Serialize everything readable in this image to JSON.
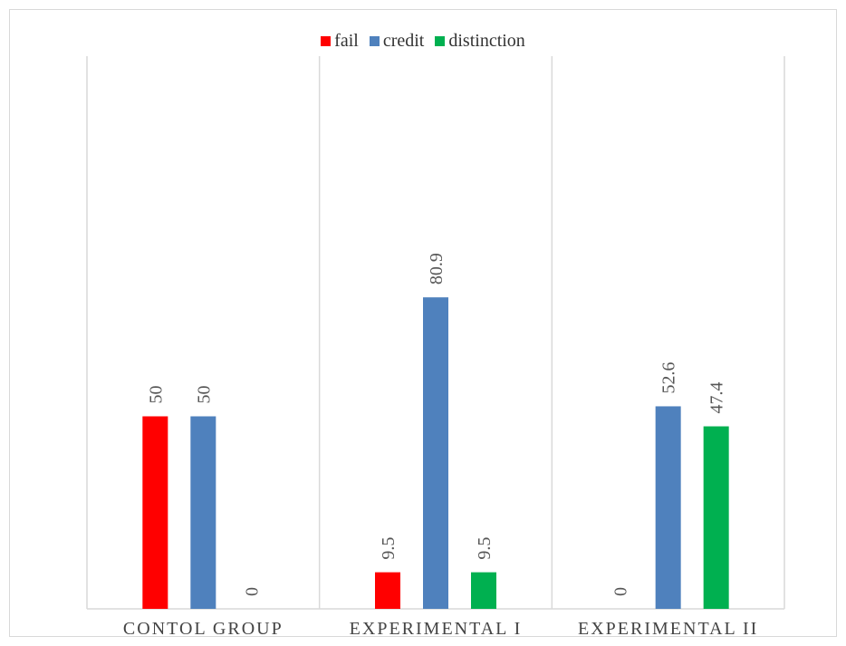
{
  "chart_data": {
    "type": "bar",
    "categories": [
      "CONTOL GROUP",
      "EXPERIMENTAL I",
      "EXPERIMENTAL II"
    ],
    "series": [
      {
        "name": "fail",
        "color": "#ff0000",
        "values": [
          50,
          9.5,
          0
        ],
        "labels": [
          "50",
          "9.5",
          ""
        ]
      },
      {
        "name": "credit",
        "color": "#4f81bd",
        "values": [
          50,
          80.9,
          52.6
        ],
        "labels": [
          "50",
          "80.9",
          "52.6"
        ]
      },
      {
        "name": "distinction",
        "color": "#00b050",
        "values": [
          0,
          9.5,
          47.4
        ],
        "labels": [
          "0",
          "9.5",
          "47.4"
        ]
      }
    ],
    "legend_position": "top",
    "grid": "vertical category separators",
    "axis_color": "#d9d9d9",
    "missing_label": "0"
  }
}
